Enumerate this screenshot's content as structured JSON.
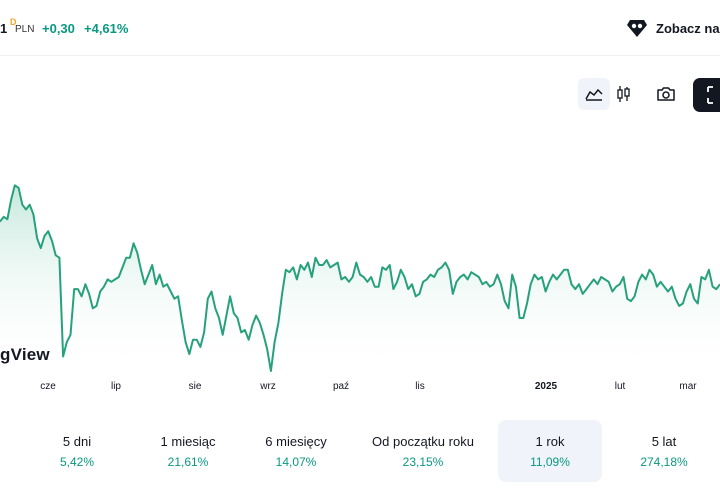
{
  "header": {
    "price_fragment": "1",
    "sup": "D",
    "currency": "PLN",
    "change_abs": "+0,30",
    "change_pct": "+4,61%",
    "promo_label": "Zobacz na"
  },
  "toolbar": {
    "area_icon": "area-chart-icon",
    "candle_icon": "candlestick-icon",
    "camera_icon": "camera-icon",
    "fullscreen_icon": "fullscreen-icon"
  },
  "watermark": "gView",
  "colors": {
    "line": "#26a17b",
    "fill_top": "#bfe6d8",
    "up": "#089981",
    "selected_bg": "#f0f3fa",
    "dark": "#131722"
  },
  "chart_data": {
    "type": "area",
    "title": "",
    "xlabel": "",
    "ylabel": "",
    "x_ticks": [
      "cze",
      "lip",
      "sie",
      "wrz",
      "paź",
      "lis",
      "2025",
      "lut",
      "mar"
    ],
    "bold_ticks": [
      "2025"
    ],
    "ylim": [
      0,
      100
    ],
    "series": [
      {
        "values": [
          62,
          64,
          63,
          71,
          77,
          76,
          69,
          67,
          69,
          65,
          55,
          51,
          56,
          58,
          54,
          48,
          47,
          6,
          12,
          15,
          34,
          34,
          31,
          36,
          32,
          26,
          27,
          33,
          35,
          38,
          37,
          38,
          39,
          43,
          47,
          47,
          53,
          49,
          42,
          36,
          40,
          44,
          36,
          40,
          35,
          36,
          33,
          30,
          31,
          21,
          12,
          7,
          13,
          13,
          10,
          16,
          30,
          33,
          26,
          22,
          15,
          23,
          31,
          24,
          22,
          16,
          17,
          13,
          19,
          23,
          20,
          15,
          9,
          0,
          12,
          20,
          32,
          42,
          41,
          43,
          38,
          44,
          42,
          45,
          39,
          47,
          44,
          44,
          46,
          43,
          44,
          45,
          38,
          39,
          37,
          39,
          45,
          40,
          39,
          37,
          39,
          35,
          35,
          43,
          42,
          44,
          34,
          37,
          42,
          39,
          34,
          36,
          31,
          32,
          37,
          38,
          40,
          39,
          42,
          43,
          45,
          42,
          32,
          37,
          39,
          40,
          38,
          41,
          40,
          39,
          36,
          37,
          35,
          36,
          40,
          36,
          29,
          26,
          40,
          35,
          22,
          22,
          28,
          36,
          40,
          38,
          39,
          33,
          37,
          40,
          38,
          40,
          42,
          42,
          36,
          34,
          36,
          32,
          34,
          36,
          38,
          36,
          39,
          38,
          37,
          33,
          35,
          36,
          39,
          30,
          29,
          31,
          37,
          40,
          38,
          42,
          40,
          35,
          37,
          35,
          33,
          35,
          30,
          27,
          28,
          33,
          36,
          30,
          28,
          39,
          38,
          42,
          35,
          34,
          36
        ]
      }
    ]
  },
  "periods": [
    {
      "label": "5 dni",
      "value": "5,42%"
    },
    {
      "label": "1 miesiąc",
      "value": "21,61%"
    },
    {
      "label": "6 miesięcy",
      "value": "14,07%"
    },
    {
      "label": "Od początku roku",
      "value": "23,15%"
    },
    {
      "label": "1 rok",
      "value": "11,09%"
    },
    {
      "label": "5 lat",
      "value": "274,18%"
    }
  ],
  "selected_period": "1 rok"
}
